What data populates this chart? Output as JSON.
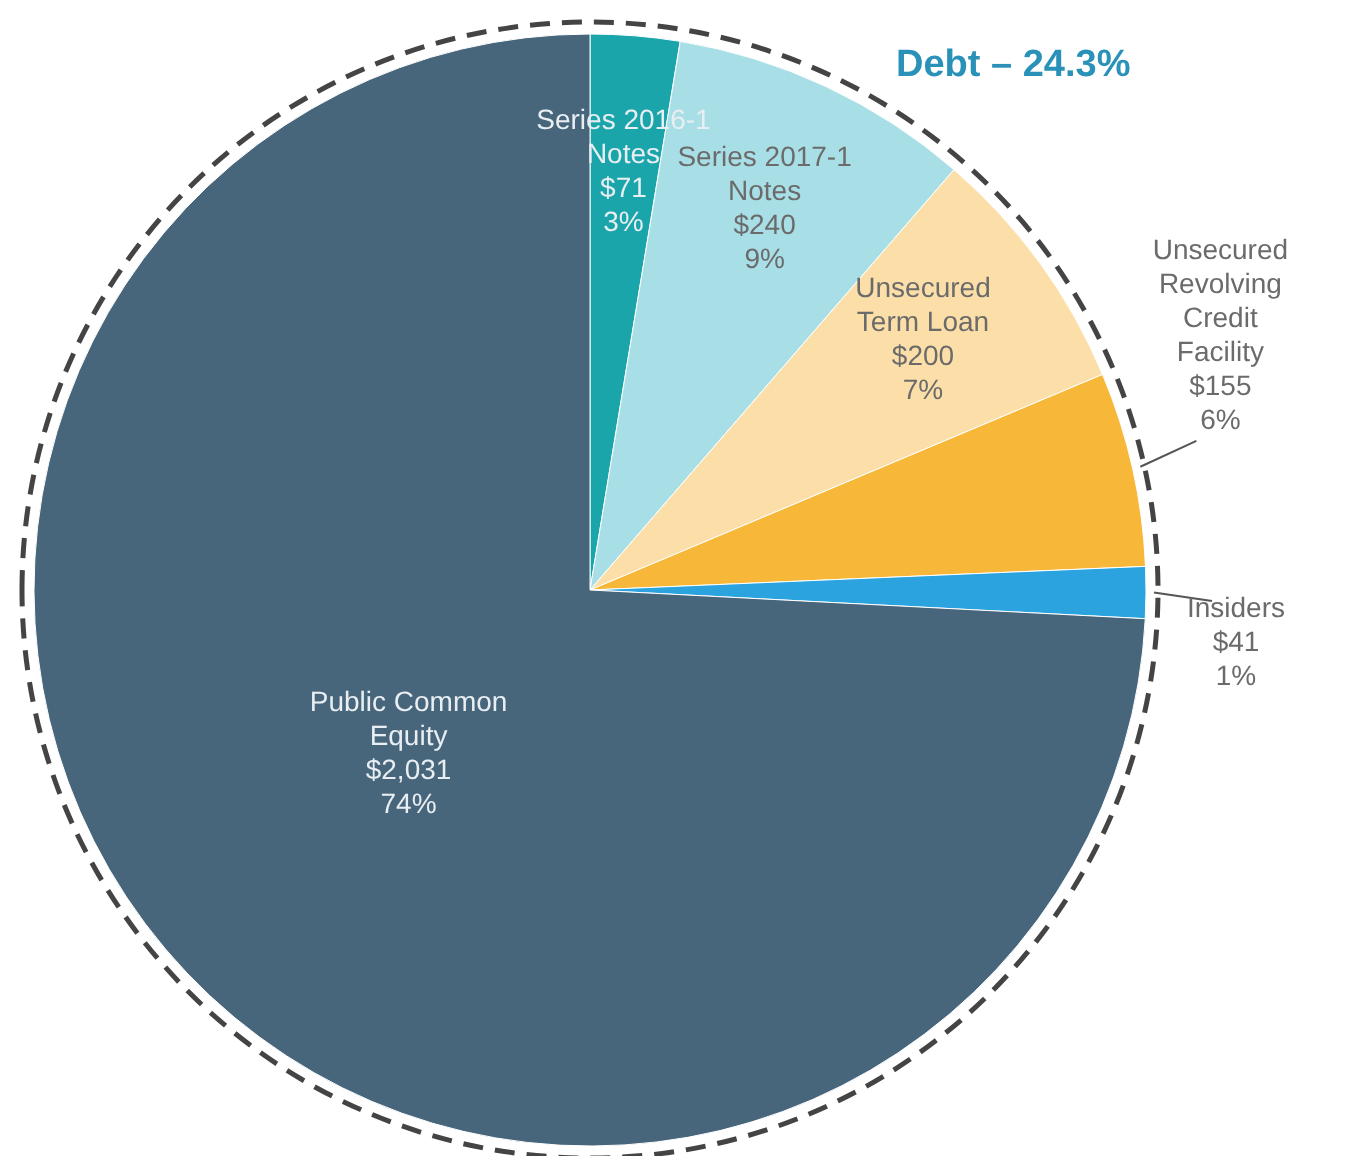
{
  "chart_data": {
    "type": "pie",
    "categories": [
      "Series 2016-1 Notes",
      "Series 2017-1 Notes",
      "Unsecured Term Loan",
      "Unsecured Revolving Credit Facility",
      "Insiders",
      "Public Common Equity"
    ],
    "values": [
      71,
      240,
      200,
      155,
      41,
      2031
    ],
    "value_labels": [
      "$71 3%",
      "$240 9%",
      "$200 7%",
      "$155 6%",
      "$41 1%",
      "$2,031 74%"
    ],
    "colors": [
      "#1aa5ab",
      "#a8dfe6",
      "#fcdfa8",
      "#f7b83a",
      "#2aa3df",
      "#47657b"
    ],
    "annotations": [
      "Debt – 24.3%"
    ]
  }
}
